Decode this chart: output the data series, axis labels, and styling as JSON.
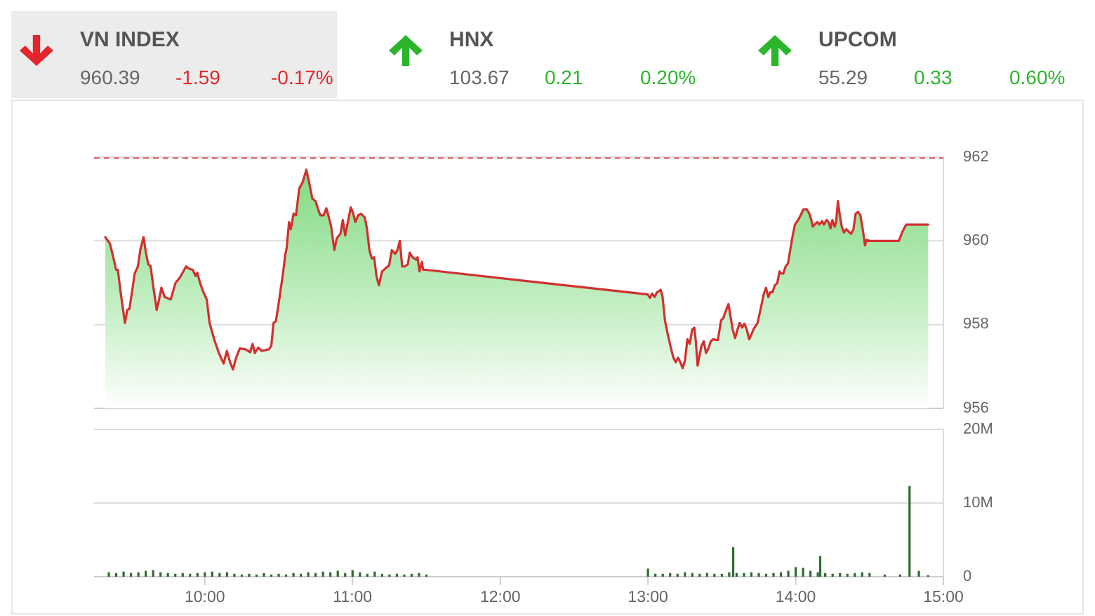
{
  "chart_data": [
    {
      "type": "other",
      "title": "VN INDEX",
      "annotations": [
        "960.39",
        "-1.59",
        "-0.17%"
      ],
      "color": "#e3262b"
    },
    {
      "type": "other",
      "title": "HNX",
      "annotations": [
        "103.67",
        "0.21",
        "0.20%"
      ],
      "color": "#2bb52b"
    },
    {
      "type": "other",
      "title": "UPCOM",
      "annotations": [
        "55.29",
        "0.33",
        "0.60%"
      ],
      "color": "#2bb52b"
    },
    {
      "type": "area",
      "xlim": [
        9.25,
        15
      ],
      "ylim": [
        956,
        962
      ],
      "yticks": [
        956,
        958,
        960,
        962
      ],
      "grid": "y",
      "tick_labels": "y",
      "ref_lines": [
        {
          "axis": "y",
          "value": 961.98,
          "color": "#d9534f",
          "line_style": "dashed"
        }
      ],
      "x": [
        9.326,
        9.357,
        9.38,
        9.399,
        9.411,
        9.43,
        9.459,
        9.475,
        9.49,
        9.509,
        9.525,
        9.547,
        9.563,
        9.585,
        9.601,
        9.617,
        9.633,
        9.652,
        9.674,
        9.69,
        9.706,
        9.728,
        9.769,
        9.801,
        9.832,
        9.873,
        9.896,
        9.918,
        9.937,
        9.949,
        9.968,
        9.991,
        10.013,
        10.032,
        10.063,
        10.095,
        10.127,
        10.149,
        10.171,
        10.19,
        10.212,
        10.237,
        10.275,
        10.307,
        10.323,
        10.339,
        10.361,
        10.386,
        10.434,
        10.45,
        10.465,
        10.481,
        10.497,
        10.529,
        10.544,
        10.554,
        10.57,
        10.582,
        10.601,
        10.617,
        10.639,
        10.662,
        10.687,
        10.703,
        10.728,
        10.75,
        10.766,
        10.782,
        10.804,
        10.823,
        10.836,
        10.855,
        10.877,
        10.893,
        10.918,
        10.934,
        10.95,
        10.965,
        10.988,
        11.003,
        11.019,
        11.038,
        11.057,
        11.083,
        11.098,
        11.114,
        11.13,
        11.146,
        11.162,
        11.178,
        11.2,
        11.225,
        11.247,
        11.266,
        11.288,
        11.304,
        11.32,
        11.336,
        11.355,
        11.374,
        11.387,
        11.406,
        11.431,
        11.44,
        11.453,
        11.469,
        11.478,
        11.494,
        12.998,
        13.014,
        13.029,
        13.045,
        13.061,
        13.086,
        13.099,
        13.115,
        13.134,
        13.156,
        13.172,
        13.188,
        13.204,
        13.219,
        13.235,
        13.251,
        13.267,
        13.283,
        13.299,
        13.314,
        13.324,
        13.336,
        13.346,
        13.362,
        13.378,
        13.393,
        13.409,
        13.425,
        13.441,
        13.473,
        13.495,
        13.511,
        13.526,
        13.545,
        13.558,
        13.574,
        13.59,
        13.606,
        13.621,
        13.637,
        13.653,
        13.669,
        13.685,
        13.701,
        13.716,
        13.742,
        13.767,
        13.783,
        13.799,
        13.815,
        13.828,
        13.843,
        13.859,
        13.875,
        13.891,
        13.9,
        13.916,
        13.932,
        13.948,
        13.963,
        13.979,
        13.995,
        14.017,
        14.033,
        14.052,
        14.074,
        14.09,
        14.106,
        14.115,
        14.128,
        14.147,
        14.16,
        14.179,
        14.191,
        14.21,
        14.223,
        14.236,
        14.248,
        14.264,
        14.274,
        14.286,
        14.299,
        14.312,
        14.327,
        14.343,
        14.359,
        14.375,
        14.391,
        14.406,
        14.422,
        14.438,
        14.454,
        14.47,
        14.479,
        14.501,
        14.698,
        14.723,
        14.748,
        14.897
      ],
      "series": [
        {
          "color": "#d32f2f",
          "values": [
            960.09,
            959.94,
            959.61,
            959.31,
            959.31,
            958.77,
            958.04,
            958.35,
            958.38,
            958.83,
            959.22,
            959.39,
            959.78,
            960.09,
            959.72,
            959.44,
            959.39,
            958.88,
            958.35,
            958.6,
            958.88,
            958.66,
            958.6,
            958.99,
            959.13,
            959.39,
            959.33,
            959.31,
            959.16,
            959.24,
            958.99,
            958.77,
            958.6,
            958.04,
            957.65,
            957.32,
            957.07,
            957.37,
            957.1,
            956.93,
            957.21,
            957.43,
            957.41,
            957.34,
            957.54,
            957.32,
            957.45,
            957.37,
            957.41,
            957.49,
            958.04,
            958.08,
            958.44,
            959.22,
            959.66,
            959.83,
            960.45,
            960.28,
            960.65,
            960.61,
            961.25,
            961.4,
            961.7,
            961.45,
            961.01,
            960.95,
            960.76,
            960.61,
            960.61,
            960.78,
            960.61,
            960.34,
            959.78,
            960.06,
            960.17,
            960.5,
            960.13,
            960.39,
            960.8,
            960.67,
            960.45,
            960.61,
            960.65,
            960.56,
            960.28,
            959.78,
            959.58,
            959.61,
            959.16,
            958.94,
            959.27,
            959.35,
            959.41,
            959.78,
            959.69,
            959.78,
            960.0,
            959.39,
            959.39,
            959.44,
            959.72,
            959.61,
            959.55,
            959.61,
            959.27,
            959.5,
            959.31,
            959.31,
            958.72,
            958.64,
            958.74,
            958.66,
            958.77,
            958.83,
            958.66,
            958.1,
            957.77,
            957.43,
            957.21,
            957.1,
            957.21,
            957.1,
            956.96,
            957.15,
            957.65,
            957.54,
            957.88,
            957.93,
            957.6,
            957.02,
            957.21,
            957.49,
            957.6,
            957.32,
            957.43,
            957.6,
            957.65,
            957.63,
            958.1,
            958.16,
            958.32,
            958.49,
            958.21,
            957.88,
            957.68,
            957.88,
            958.04,
            957.93,
            958.02,
            957.88,
            957.65,
            957.77,
            957.9,
            958.04,
            958.44,
            958.72,
            958.88,
            958.66,
            958.77,
            958.77,
            958.94,
            958.99,
            959.27,
            959.22,
            959.22,
            959.39,
            959.46,
            959.78,
            960.11,
            960.39,
            960.5,
            960.61,
            960.75,
            960.76,
            960.67,
            960.5,
            960.34,
            960.39,
            960.45,
            960.39,
            960.47,
            960.39,
            960.5,
            960.45,
            960.3,
            960.5,
            960.34,
            960.45,
            960.95,
            960.61,
            960.34,
            960.2,
            960.28,
            960.22,
            960.17,
            960.28,
            960.65,
            960.69,
            960.61,
            960.28,
            959.89,
            960.02,
            960.0,
            960.0,
            960.22,
            960.39,
            960.39
          ]
        }
      ]
    },
    {
      "type": "bar",
      "xlim": [
        9.25,
        15
      ],
      "xticks": [
        {
          "value": 10,
          "label": "10:00"
        },
        {
          "value": 11,
          "label": "11:00"
        },
        {
          "value": 12,
          "label": "12:00"
        },
        {
          "value": 13,
          "label": "13:00"
        },
        {
          "value": 14,
          "label": "14:00"
        },
        {
          "value": 15,
          "label": "15:00"
        }
      ],
      "ylim": [
        0,
        20
      ],
      "yticks": [
        0,
        {
          "value": 10,
          "label": "10M"
        },
        {
          "value": 20,
          "label": "20M"
        }
      ],
      "grid": "y",
      "color": "#2f6b2f",
      "x": [
        9.35,
        9.4,
        9.45,
        9.5,
        9.55,
        9.6,
        9.65,
        9.7,
        9.75,
        9.8,
        9.85,
        9.9,
        9.95,
        10,
        10.05,
        10.1,
        10.15,
        10.2,
        10.25,
        10.3,
        10.35,
        10.4,
        10.45,
        10.5,
        10.55,
        10.6,
        10.65,
        10.7,
        10.75,
        10.8,
        10.85,
        10.9,
        10.95,
        11,
        11.05,
        11.1,
        11.15,
        11.2,
        11.25,
        11.3,
        11.35,
        11.4,
        11.45,
        11.5,
        13,
        13.05,
        13.1,
        13.15,
        13.2,
        13.25,
        13.3,
        13.35,
        13.4,
        13.45,
        13.5,
        13.55,
        13.577,
        13.6,
        13.65,
        13.7,
        13.75,
        13.8,
        13.85,
        13.9,
        13.95,
        14,
        14.05,
        14.1,
        14.15,
        14.166,
        14.2,
        14.25,
        14.3,
        14.35,
        14.4,
        14.45,
        14.5,
        14.603,
        14.707,
        14.771,
        14.834,
        14.897
      ],
      "values": [
        0.6,
        0.5,
        0.7,
        0.5,
        0.6,
        0.8,
        0.9,
        0.6,
        0.5,
        0.4,
        0.5,
        0.4,
        0.5,
        0.6,
        0.7,
        0.5,
        0.6,
        0.4,
        0.3,
        0.4,
        0.3,
        0.5,
        0.3,
        0.4,
        0.3,
        0.5,
        0.4,
        0.6,
        0.5,
        0.7,
        0.6,
        0.8,
        0.5,
        0.9,
        0.6,
        0.4,
        0.7,
        0.4,
        0.3,
        0.4,
        0.3,
        0.4,
        0.5,
        0.3,
        1.1,
        0.4,
        0.4,
        0.5,
        0.4,
        0.6,
        0.5,
        0.4,
        0.5,
        0.4,
        0.4,
        0.6,
        4.0,
        0.5,
        0.5,
        0.6,
        0.5,
        0.4,
        0.5,
        0.6,
        0.8,
        1.3,
        1.2,
        0.8,
        0.6,
        2.8,
        0.5,
        0.4,
        0.5,
        0.4,
        0.5,
        0.6,
        0.5,
        0.3,
        0.3,
        12.3,
        0.8,
        0.2
      ]
    }
  ]
}
